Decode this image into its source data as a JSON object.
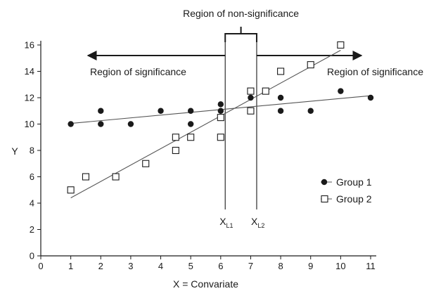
{
  "chart_data": {
    "type": "scatter",
    "xlabel": "X = Convariate",
    "ylabel": "Y",
    "xlim": [
      0,
      11
    ],
    "ylim": [
      0,
      16
    ],
    "xticks": [
      "0",
      "1",
      "2",
      "3",
      "4",
      "5",
      "6",
      "7",
      "8",
      "9",
      "10",
      "11"
    ],
    "yticks": [
      "0",
      "2",
      "4",
      "6",
      "8",
      "10",
      "12",
      "14",
      "16"
    ],
    "grid": false,
    "legend_position": "right",
    "series": [
      {
        "name": "Group 1",
        "marker": "filled-circle",
        "color": "#1a1a1a",
        "points": [
          [
            1,
            10
          ],
          [
            2,
            11
          ],
          [
            2,
            10
          ],
          [
            3,
            10
          ],
          [
            4,
            11
          ],
          [
            5,
            11
          ],
          [
            5,
            10
          ],
          [
            6,
            11.5
          ],
          [
            6,
            11
          ],
          [
            7,
            12
          ],
          [
            8,
            12
          ],
          [
            8,
            11
          ],
          [
            9,
            11
          ],
          [
            10,
            12.5
          ],
          [
            11,
            12
          ]
        ],
        "fit_line": [
          [
            1,
            10.05
          ],
          [
            11,
            12.15
          ]
        ]
      },
      {
        "name": "Group 2",
        "marker": "open-square",
        "color": "#1a1a1a",
        "points": [
          [
            1,
            5
          ],
          [
            1.5,
            6
          ],
          [
            2.5,
            6
          ],
          [
            3.5,
            7
          ],
          [
            4.5,
            9
          ],
          [
            4.5,
            8
          ],
          [
            5,
            9
          ],
          [
            6,
            10.5
          ],
          [
            6,
            9
          ],
          [
            7,
            12.5
          ],
          [
            7,
            11
          ],
          [
            7.5,
            12.5
          ],
          [
            8,
            14
          ],
          [
            9,
            14.5
          ],
          [
            10,
            16
          ]
        ],
        "fit_line": [
          [
            1,
            4.4
          ],
          [
            10,
            15.6
          ]
        ]
      }
    ],
    "johnson_neyman_points": [
      {
        "x": 6.15,
        "label": "X",
        "subscript": "L1"
      },
      {
        "x": 7.2,
        "label": "X",
        "subscript": "L2"
      }
    ],
    "annotations": {
      "non_significance": "Region of non-significance",
      "significance_left": "Region of significance",
      "significance_right": "Region of significance"
    },
    "significance_arrow_y": 15.2
  }
}
